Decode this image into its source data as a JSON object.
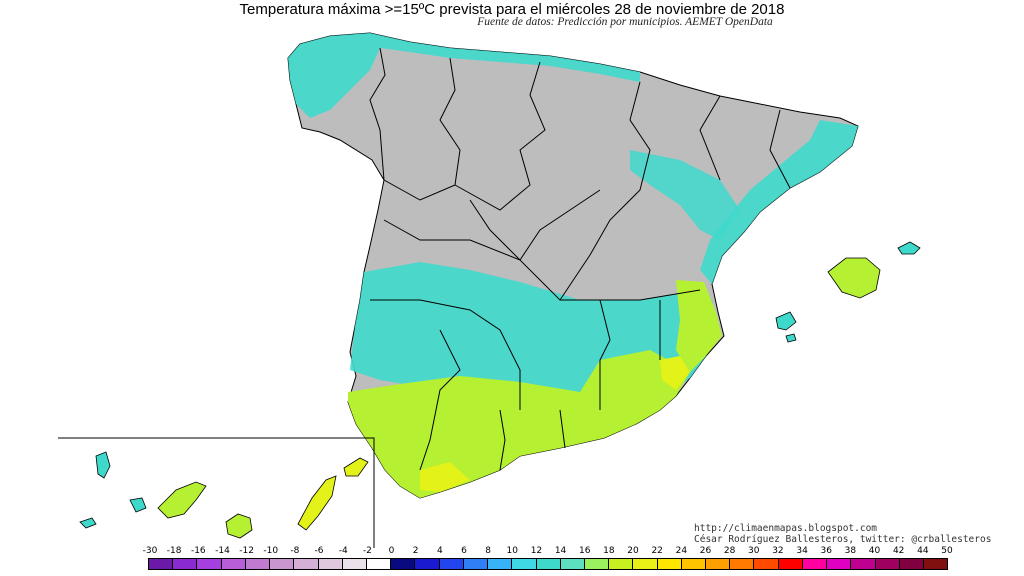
{
  "map": {
    "title": "Temperatura máxima >=15ºC prevista para el miércoles 28 de noviembre de 2018",
    "subtitle": "Fuente de datos: Predicción por municipios. AEMET OpenData",
    "region": "España peninsular, Baleares y Canarias",
    "colors": {
      "no_data_grey": "#bdbdbd",
      "band_14_16": "#3fd9cc",
      "band_16_18": "#5ee0c0",
      "band_18_20": "#b6f032",
      "band_20_22": "#e3f218",
      "border": "#000000"
    }
  },
  "credits": {
    "url": "http://climaenmapas.blogspot.com",
    "author": "César Rodríguez Ballesteros, twitter: @crballesteros"
  },
  "legend": {
    "ticks": [
      "-30",
      "-18",
      "-16",
      "-14",
      "-12",
      "-10",
      "-8",
      "-6",
      "-4",
      "-2",
      "0",
      "2",
      "4",
      "6",
      "8",
      "10",
      "12",
      "14",
      "16",
      "18",
      "20",
      "22",
      "24",
      "26",
      "28",
      "30",
      "32",
      "34",
      "36",
      "38",
      "40",
      "42",
      "44",
      "50"
    ],
    "colors": [
      "#6a1aa6",
      "#8a2bd2",
      "#a53fe0",
      "#b85ed8",
      "#c07ad0",
      "#c996cf",
      "#d4b0d6",
      "#dfc9de",
      "#ebe1ea",
      "#ffffff",
      "#0a0a80",
      "#1a1ad0",
      "#2345f0",
      "#2f7ff5",
      "#38b3f8",
      "#3fd9e6",
      "#3fd9cc",
      "#5ee0c0",
      "#9bf05e",
      "#c8f020",
      "#e8f018",
      "#ffe600",
      "#ffc400",
      "#ffa000",
      "#ff7a00",
      "#ff4a00",
      "#ff0000",
      "#ff00a0",
      "#e000c0",
      "#c00090",
      "#a00060",
      "#800040",
      "#801010"
    ]
  }
}
